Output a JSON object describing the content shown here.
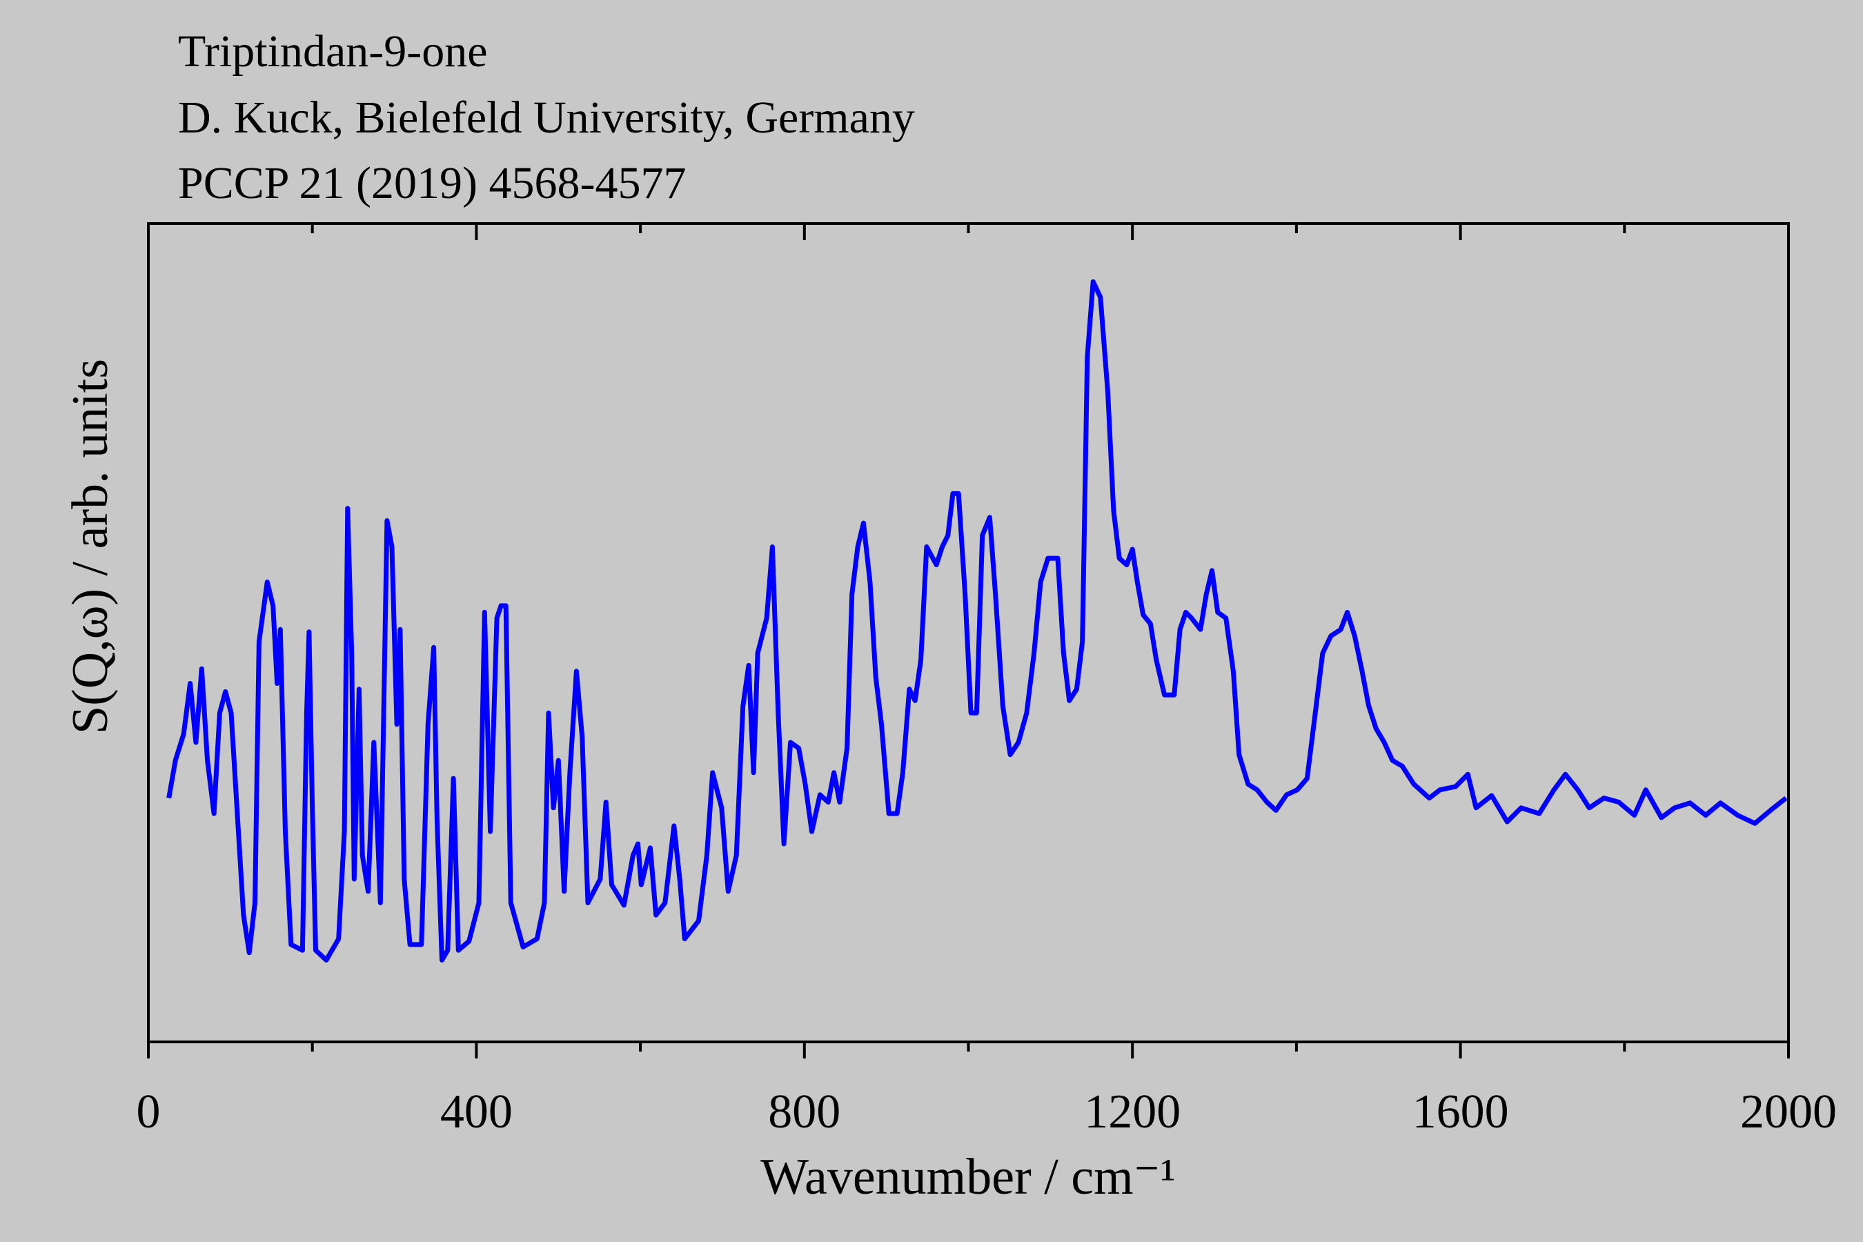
{
  "chart_data": {
    "type": "line",
    "title": "Triptindan-9-one",
    "subtitle": [
      "D. Kuck, Bielefeld University, Germany",
      "PCCP 21 (2019) 4568-4577"
    ],
    "x_label": "Wavenumber / cm⁻¹",
    "y_label": "S(Q,ω) / arb. units",
    "xlim": [
      0,
      2000
    ],
    "ylim": [
      0,
      100
    ],
    "xticks": [
      0,
      400,
      800,
      1200,
      1600,
      2000
    ],
    "xminorticks": [
      200,
      600,
      1000,
      1400,
      1800
    ],
    "grid": false,
    "series": [
      {
        "name": "Triptindan-9-one",
        "color": "#0000ff",
        "x": [
          25,
          33,
          43,
          51,
          58,
          65,
          72,
          80,
          87,
          94,
          101,
          109,
          116,
          123,
          130,
          135,
          145,
          152,
          157,
          161,
          167,
          174,
          188,
          193,
          196,
          200,
          204,
          217,
          232,
          239,
          243,
          248,
          251,
          257,
          261,
          268,
          275,
          283,
          291,
          297,
          303,
          307,
          312,
          319,
          333,
          341,
          348,
          352,
          358,
          365,
          372,
          378,
          391,
          403,
          410,
          417,
          425,
          430,
          436,
          442,
          457,
          474,
          483,
          488,
          494,
          500,
          507,
          514,
          522,
          529,
          536,
          551,
          558,
          565,
          580,
          591,
          597,
          601,
          612,
          619,
          630,
          641,
          648,
          654,
          671,
          681,
          688,
          699,
          707,
          717,
          725,
          732,
          738,
          743,
          754,
          761,
          768,
          775,
          783,
          793,
          801,
          809,
          819,
          829,
          836,
          843,
          852,
          858,
          865,
          872,
          880,
          887,
          894,
          903,
          913,
          920,
          928,
          935,
          942,
          949,
          961,
          968,
          975,
          981,
          988,
          996,
          1003,
          1010,
          1017,
          1026,
          1033,
          1042,
          1051,
          1061,
          1071,
          1080,
          1088,
          1097,
          1109,
          1116,
          1123,
          1132,
          1139,
          1145,
          1152,
          1161,
          1170,
          1177,
          1184,
          1193,
          1200,
          1206,
          1213,
          1222,
          1229,
          1239,
          1251,
          1258,
          1265,
          1272,
          1283,
          1290,
          1297,
          1304,
          1314,
          1323,
          1330,
          1341,
          1352,
          1364,
          1375,
          1388,
          1401,
          1413,
          1423,
          1432,
          1442,
          1454,
          1462,
          1471,
          1480,
          1488,
          1497,
          1507,
          1517,
          1529,
          1543,
          1562,
          1575,
          1594,
          1609,
          1619,
          1638,
          1657,
          1674,
          1696,
          1714,
          1728,
          1743,
          1757,
          1775,
          1793,
          1812,
          1826,
          1845,
          1861,
          1880,
          1899,
          1917,
          1938,
          1959,
          1978,
          1997
        ],
        "values": [
          29.8,
          34.4,
          37.6,
          43.8,
          36.6,
          45.6,
          34.4,
          27.9,
          40.2,
          42.8,
          40.2,
          27.1,
          15.5,
          10.9,
          17,
          48.9,
          56.2,
          53.3,
          43.8,
          50.4,
          25.7,
          11.9,
          11.2,
          40.2,
          50.1,
          28.6,
          11.2,
          10,
          12.6,
          25.7,
          65.2,
          47.5,
          19.9,
          43.1,
          22.8,
          18.4,
          36.6,
          17,
          63.7,
          60.5,
          38.8,
          50.4,
          19.9,
          11.9,
          11.9,
          38.8,
          48.2,
          27.1,
          10,
          11.2,
          32.2,
          11.2,
          12.3,
          17,
          52.5,
          25.7,
          51.8,
          53.3,
          53.3,
          17,
          11.6,
          12.6,
          17,
          40.2,
          28.6,
          34.4,
          18.4,
          32.9,
          45.3,
          37.3,
          17,
          19.9,
          29.3,
          19.2,
          16.7,
          22.8,
          24.2,
          19.2,
          23.7,
          15.5,
          17,
          26.4,
          19.9,
          12.6,
          14.8,
          22.8,
          32.9,
          28.6,
          18.4,
          22.8,
          41,
          46,
          32.9,
          47.5,
          51.8,
          60.5,
          40.2,
          24.2,
          36.6,
          35.9,
          31.5,
          25.7,
          30.2,
          29.3,
          32.9,
          29.3,
          35.9,
          54.7,
          60.5,
          63.4,
          56.2,
          44.6,
          38.8,
          27.9,
          27.9,
          32.9,
          43.1,
          41.7,
          46.7,
          60.5,
          58.3,
          60.5,
          61.9,
          67,
          67,
          54.7,
          40.2,
          40.2,
          61.9,
          64.1,
          54.7,
          41,
          35.1,
          36.6,
          40.2,
          47.5,
          56.2,
          59.1,
          59.1,
          47.5,
          41.7,
          43.1,
          48.9,
          83.7,
          92.9,
          91,
          79.4,
          64.9,
          59.1,
          58.3,
          60.2,
          56.2,
          52.2,
          51.1,
          46.7,
          42.4,
          42.4,
          50.4,
          52.5,
          51.8,
          50.4,
          54.7,
          57.6,
          52.5,
          51.8,
          45.3,
          35.1,
          31.5,
          30.8,
          29.3,
          28.3,
          30.2,
          30.8,
          32.2,
          40.2,
          47.5,
          49.6,
          50.4,
          52.5,
          49.6,
          45.3,
          41.1,
          38.3,
          36.6,
          34.4,
          33.7,
          31.5,
          29.8,
          30.8,
          31.2,
          32.7,
          28.6,
          30.1,
          26.9,
          28.6,
          27.9,
          30.8,
          32.7,
          30.8,
          28.6,
          29.8,
          29.3,
          27.7,
          30.8,
          27.4,
          28.6,
          29.2,
          27.7,
          29.2,
          27.7,
          26.7,
          28.3,
          29.8
        ]
      }
    ]
  }
}
